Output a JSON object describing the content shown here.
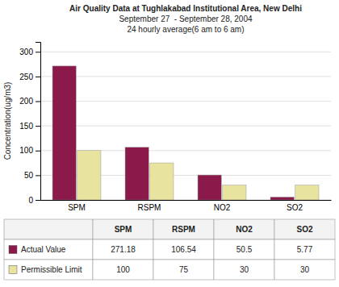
{
  "chart_data": {
    "type": "bar",
    "title": "Air Quality Data at Tughlakabad Institutional Area, New Delhi\nSeptember 27  - September 28, 2004\n24 hourly average(6 am to 6 am)",
    "categories": [
      "SPM",
      "RSPM",
      "NO2",
      "SO2"
    ],
    "series": [
      {
        "name": "Actual Value",
        "color": "#8B1A4A",
        "values": [
          271.18,
          106.54,
          50.5,
          5.77
        ]
      },
      {
        "name": "Permissible Limit",
        "color": "#E8E4A0",
        "values": [
          100,
          75,
          30,
          30
        ]
      }
    ],
    "y_label": "Concentration(ug/m3)",
    "ylim": [
      0,
      320
    ],
    "yticks": [
      0,
      50,
      100,
      150,
      200,
      250,
      300
    ],
    "grid": true,
    "data_labels": true
  }
}
